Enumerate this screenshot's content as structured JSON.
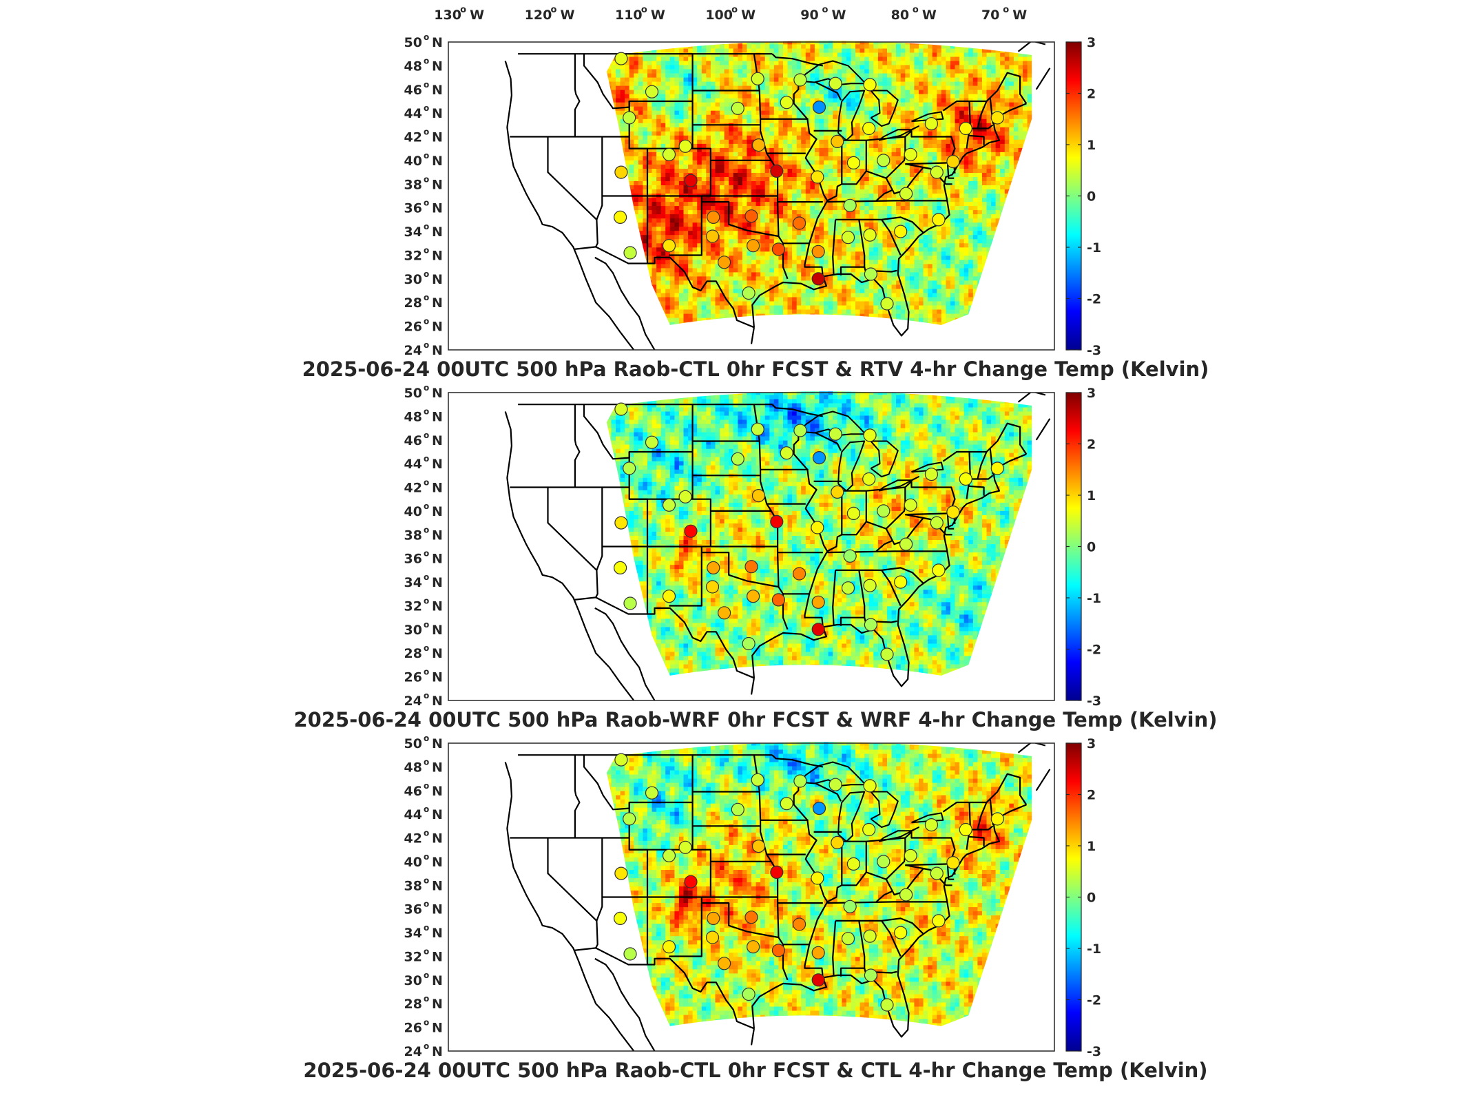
{
  "top_lon_labels": [
    {
      "deg": "130",
      "hemi": "W"
    },
    {
      "deg": "120",
      "hemi": "W"
    },
    {
      "deg": "110",
      "hemi": "W"
    },
    {
      "deg": "100",
      "hemi": "W"
    },
    {
      "deg": "90",
      "hemi": "W"
    },
    {
      "deg": "80",
      "hemi": "W"
    },
    {
      "deg": "70",
      "hemi": "W"
    }
  ],
  "lat_labels": [
    {
      "deg": "50",
      "hemi": "N"
    },
    {
      "deg": "48",
      "hemi": "N"
    },
    {
      "deg": "46",
      "hemi": "N"
    },
    {
      "deg": "44",
      "hemi": "N"
    },
    {
      "deg": "42",
      "hemi": "N"
    },
    {
      "deg": "40",
      "hemi": "N"
    },
    {
      "deg": "38",
      "hemi": "N"
    },
    {
      "deg": "36",
      "hemi": "N"
    },
    {
      "deg": "34",
      "hemi": "N"
    },
    {
      "deg": "32",
      "hemi": "N"
    },
    {
      "deg": "30",
      "hemi": "N"
    },
    {
      "deg": "28",
      "hemi": "N"
    },
    {
      "deg": "26",
      "hemi": "N"
    },
    {
      "deg": "24",
      "hemi": "N"
    }
  ],
  "colorbar": {
    "ticks": [
      "3",
      "2",
      "1",
      "0",
      "-1",
      "-2",
      "-3"
    ],
    "colors": [
      "#00008f",
      "#0000ff",
      "#0080ff",
      "#00ffff",
      "#80ff80",
      "#ffff00",
      "#ff8000",
      "#ff0000",
      "#800000"
    ]
  },
  "panels": [
    {
      "title": "2025-06-24 00UTC 500 hPa Raob-CTL 0hr FCST & RTV 4-hr Change Temp (Kelvin)",
      "scheme": "warm"
    },
    {
      "title": "2025-06-24 00UTC 500 hPa Raob-WRF 0hr FCST & WRF 4-hr Change Temp (Kelvin)",
      "scheme": "cool"
    },
    {
      "title": "2025-06-24 00UTC 500 hPa Raob-CTL 0hr FCST & CTL 4-hr Change Temp (Kelvin)",
      "scheme": "mixed"
    }
  ],
  "stations": [
    {
      "lon": -111.9,
      "lat": 48.6,
      "v": 0.6
    },
    {
      "lon": -108.5,
      "lat": 45.8,
      "v": 0.5
    },
    {
      "lon": -111.0,
      "lat": 43.6,
      "v": 0.4
    },
    {
      "lon": -106.6,
      "lat": 40.5,
      "v": 0.5
    },
    {
      "lon": -111.9,
      "lat": 39.0,
      "v": 1.0
    },
    {
      "lon": -104.2,
      "lat": 38.3,
      "v": 2.4
    },
    {
      "lon": -112.0,
      "lat": 35.2,
      "v": 0.8
    },
    {
      "lon": -106.6,
      "lat": 32.8,
      "v": 0.9
    },
    {
      "lon": -110.9,
      "lat": 32.2,
      "v": 0.4
    },
    {
      "lon": -101.7,
      "lat": 35.2,
      "v": 1.4
    },
    {
      "lon": -97.5,
      "lat": 35.3,
      "v": 1.7
    },
    {
      "lon": -101.8,
      "lat": 33.6,
      "v": 1.1
    },
    {
      "lon": -97.3,
      "lat": 32.8,
      "v": 1.3
    },
    {
      "lon": -94.5,
      "lat": 32.5,
      "v": 1.8
    },
    {
      "lon": -97.8,
      "lat": 28.8,
      "v": 0.3
    },
    {
      "lon": -100.5,
      "lat": 31.4,
      "v": 1.3
    },
    {
      "lon": -104.8,
      "lat": 41.2,
      "v": 0.6
    },
    {
      "lon": -96.7,
      "lat": 41.3,
      "v": 1.2
    },
    {
      "lon": -94.7,
      "lat": 39.1,
      "v": 2.5
    },
    {
      "lon": -99.0,
      "lat": 44.4,
      "v": 0.4
    },
    {
      "lon": -96.8,
      "lat": 46.9,
      "v": 0.5
    },
    {
      "lon": -93.6,
      "lat": 44.9,
      "v": 0.6
    },
    {
      "lon": -90.0,
      "lat": 44.5,
      "v": -1.4
    },
    {
      "lon": -88.0,
      "lat": 41.6,
      "v": 1.1
    },
    {
      "lon": -90.2,
      "lat": 38.6,
      "v": 0.9
    },
    {
      "lon": -92.2,
      "lat": 34.7,
      "v": 1.6
    },
    {
      "lon": -90.1,
      "lat": 32.3,
      "v": 1.4
    },
    {
      "lon": -90.1,
      "lat": 30.0,
      "v": 2.6
    },
    {
      "lon": -86.8,
      "lat": 33.5,
      "v": 0.5
    },
    {
      "lon": -86.6,
      "lat": 36.2,
      "v": 0.2
    },
    {
      "lon": -84.4,
      "lat": 33.7,
      "v": 0.6
    },
    {
      "lon": -82.5,
      "lat": 27.9,
      "v": 0.5
    },
    {
      "lon": -84.3,
      "lat": 30.4,
      "v": 0.3
    },
    {
      "lon": -81.0,
      "lat": 34.0,
      "v": 0.8
    },
    {
      "lon": -80.4,
      "lat": 37.2,
      "v": 0.5
    },
    {
      "lon": -77.0,
      "lat": 39.0,
      "v": 0.5
    },
    {
      "lon": -82.9,
      "lat": 40.0,
      "v": 0.4
    },
    {
      "lon": -86.2,
      "lat": 39.8,
      "v": 0.7
    },
    {
      "lon": -84.5,
      "lat": 42.7,
      "v": 0.7
    },
    {
      "lon": -79.9,
      "lat": 40.5,
      "v": 0.6
    },
    {
      "lon": -75.2,
      "lat": 39.9,
      "v": 1.0
    },
    {
      "lon": -73.8,
      "lat": 42.7,
      "v": 0.8
    },
    {
      "lon": -70.3,
      "lat": 43.6,
      "v": 0.9
    },
    {
      "lon": -77.6,
      "lat": 43.1,
      "v": 0.6
    },
    {
      "lon": -88.2,
      "lat": 46.5,
      "v": 0.5
    },
    {
      "lon": -84.4,
      "lat": 46.4,
      "v": 0.7
    },
    {
      "lon": -92.1,
      "lat": 46.8,
      "v": 0.4
    },
    {
      "lon": -76.8,
      "lat": 35.0,
      "v": 0.8
    }
  ]
}
